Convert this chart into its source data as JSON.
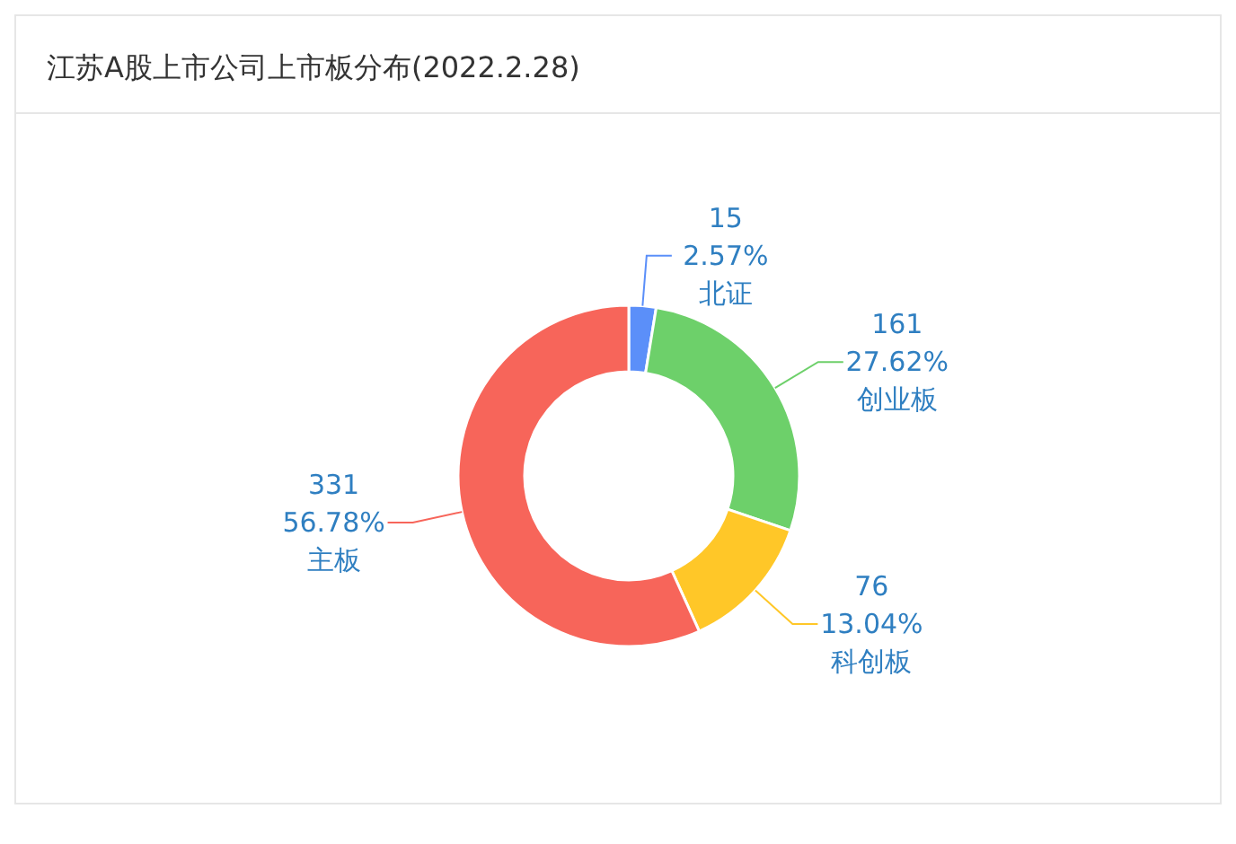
{
  "chart_data": {
    "type": "donut",
    "title": "江苏A股上市公司上市板分布(2022.2.28)",
    "categories": [
      "北证",
      "创业板",
      "科创板",
      "主板"
    ],
    "values": [
      15,
      161,
      76,
      331
    ],
    "value_labels": [
      "15\n2.57%",
      "161\n27.62%",
      "76\n13.04%",
      "331\n56.78%"
    ],
    "colors": [
      "#5b8ff9",
      "#6dd06a",
      "#ffc728",
      "#f7655a"
    ],
    "legend": false
  }
}
